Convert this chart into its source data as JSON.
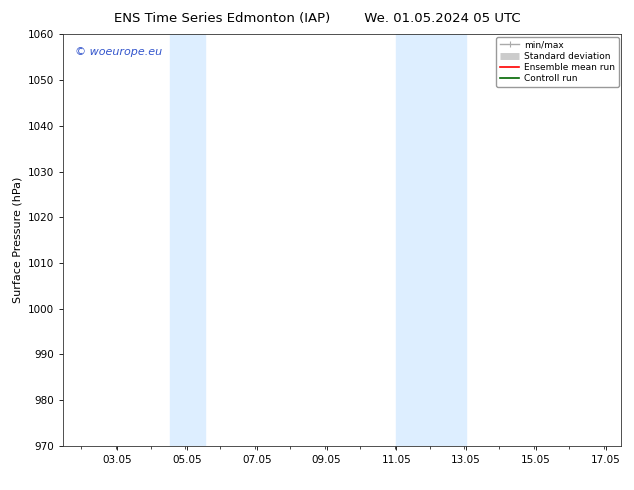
{
  "title_left": "ENS Time Series Edmonton (IAP)",
  "title_right": "We. 01.05.2024 05 UTC",
  "ylabel": "Surface Pressure (hPa)",
  "ylim": [
    970,
    1060
  ],
  "yticks": [
    970,
    980,
    990,
    1000,
    1010,
    1020,
    1030,
    1040,
    1050,
    1060
  ],
  "xlim": [
    1.5,
    17.5
  ],
  "xticks": [
    3.05,
    5.05,
    7.05,
    9.05,
    11.05,
    13.05,
    15.05,
    17.05
  ],
  "xticklabels": [
    "03.05",
    "05.05",
    "07.05",
    "09.05",
    "11.05",
    "13.05",
    "15.05",
    "17.05"
  ],
  "background_color": "#ffffff",
  "plot_bg_color": "#ffffff",
  "shaded_regions": [
    {
      "xmin": 4.55,
      "xmax": 5.55,
      "color": "#ddeeff"
    },
    {
      "xmin": 11.05,
      "xmax": 13.05,
      "color": "#ddeeff"
    }
  ],
  "watermark_text": "© woeurope.eu",
  "watermark_color": "#3355cc",
  "title_fontsize": 9.5,
  "label_fontsize": 8,
  "tick_fontsize": 7.5
}
